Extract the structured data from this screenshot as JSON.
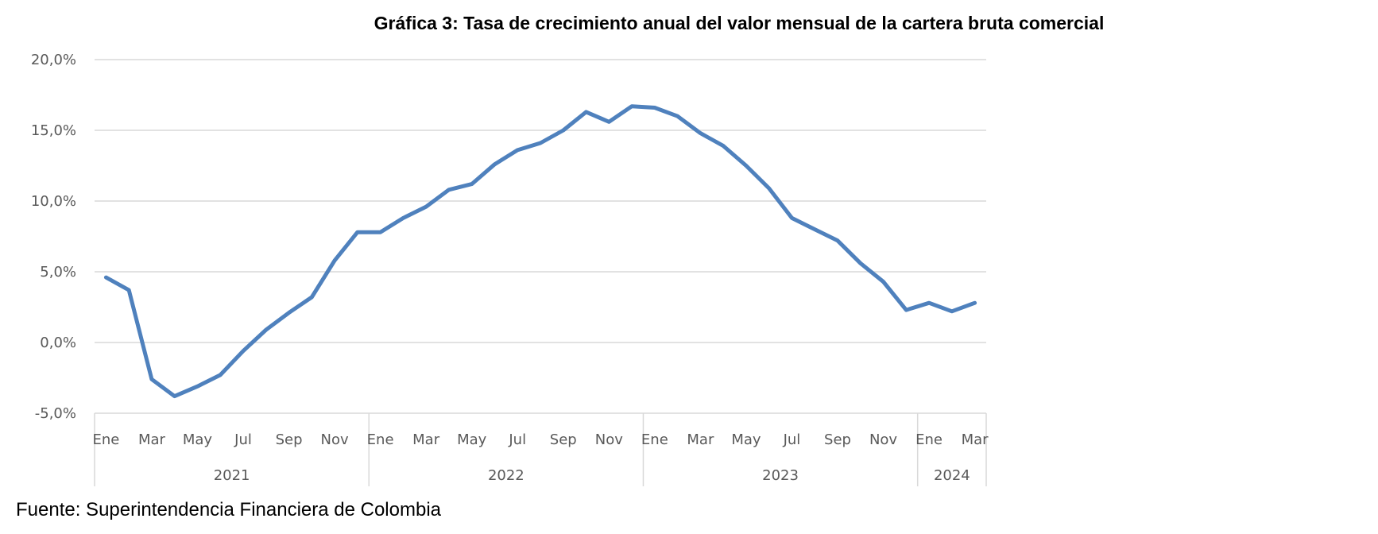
{
  "chart_data": {
    "type": "line",
    "title": "Gráfica 3: Tasa de crecimiento anual del valor mensual de la cartera bruta comercial",
    "xlabel": "",
    "ylabel": "",
    "ylim": [
      -5,
      20
    ],
    "yticks": [
      -5,
      0,
      5,
      10,
      15,
      20
    ],
    "ytick_labels": [
      "-5,0%",
      "0,0%",
      "5,0%",
      "10,0%",
      "15,0%",
      "20,0%"
    ],
    "grid": true,
    "legend": "none",
    "month_labels": [
      "Ene",
      "Mar",
      "May",
      "Jul",
      "Sep",
      "Nov",
      "Ene",
      "Mar",
      "May",
      "Jul",
      "Sep",
      "Nov",
      "Ene",
      "Mar",
      "May",
      "Jul",
      "Sep",
      "Nov",
      "Ene",
      "Mar"
    ],
    "years": [
      {
        "label": "2021",
        "months": 12
      },
      {
        "label": "2022",
        "months": 12
      },
      {
        "label": "2023",
        "months": 12
      },
      {
        "label": "2024",
        "months": 3
      }
    ],
    "series": [
      {
        "name": "Tasa de crecimiento anual",
        "color": "#4F81BD",
        "values": [
          4.6,
          3.7,
          -2.6,
          -3.8,
          -3.1,
          -2.3,
          -0.6,
          0.9,
          2.1,
          3.2,
          5.8,
          7.8,
          7.8,
          8.8,
          9.6,
          10.8,
          11.2,
          12.6,
          13.6,
          14.1,
          15.0,
          16.3,
          15.6,
          16.7,
          16.6,
          16.0,
          14.8,
          13.9,
          12.5,
          10.9,
          8.8,
          8.0,
          7.2,
          5.6,
          4.3,
          2.3,
          2.8,
          2.2,
          2.8
        ]
      }
    ]
  },
  "source": "Fuente: Superintendencia Financiera de Colombia"
}
